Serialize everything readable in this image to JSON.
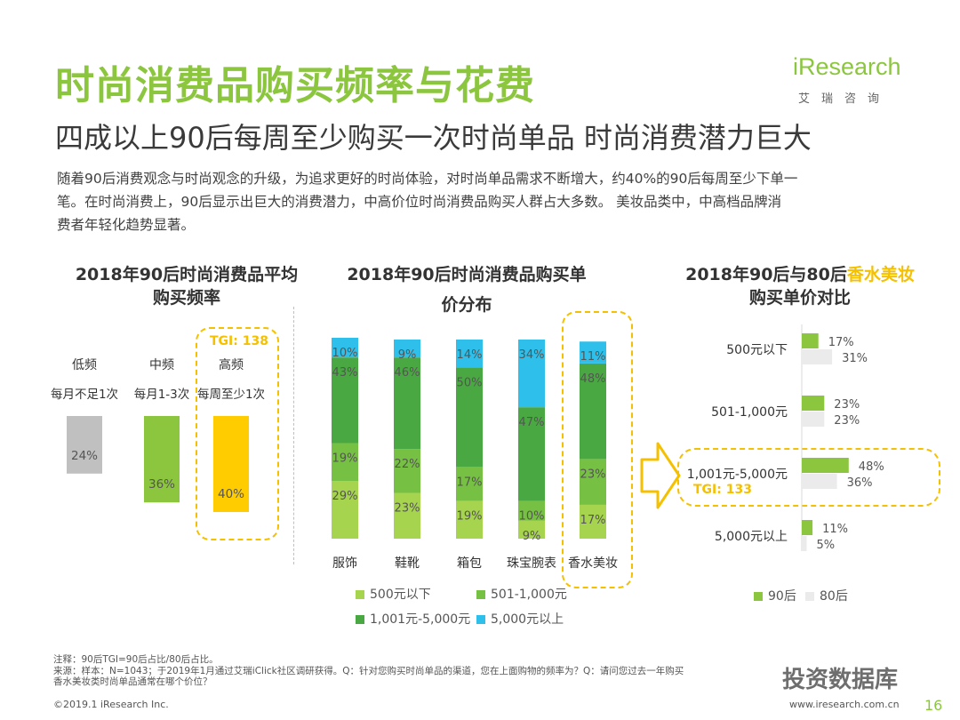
{
  "header": {
    "title": "时尚消费品购买频率与花费",
    "subtitle": "四成以上90后每周至少购买一次时尚单品 时尚消费潜力巨大",
    "intro_line1": "随着90后消费观念与时尚观念的升级，为追求更好的时尚体验，对时尚单品需求不断增大，约40%的90后每周至少下单一",
    "intro_line2": "笔。在时尚消费上，90后显示出巨大的消费潜力，中高价位时尚消费品购买人群占大多数。 美妆品类中，中高档品牌消",
    "intro_line3": "费者年轻化趋势显著。"
  },
  "logo": {
    "word": "iResearch",
    "cn": "艾瑞咨询"
  },
  "chart_data": [
    {
      "type": "bar",
      "title_line1": "2018年90后时尚消费品平均",
      "title_line2": "购买频率",
      "categories": [
        "低频",
        "中频",
        "高频"
      ],
      "sublabels": [
        "每月不足1次",
        "每月1-3次",
        "每周至少1次"
      ],
      "values": [
        24,
        36,
        40
      ],
      "value_labels": [
        "24%",
        "36%",
        "40%"
      ],
      "colors": [
        "#c0c0c0",
        "#8cc63f",
        "#ffcc00"
      ],
      "annotation": "TGI: 138"
    },
    {
      "type": "bar",
      "title_line1": "2018年90后时尚消费品购买单",
      "title_line2": "价分布",
      "categories": [
        "服饰",
        "鞋靴",
        "箱包",
        "珠宝腕表",
        "香水美妆"
      ],
      "series": [
        {
          "name": "500元以下",
          "color": "#a6d44e",
          "values": [
            29,
            23,
            19,
            9,
            17
          ]
        },
        {
          "name": "501-1,000元",
          "color": "#76c043",
          "values": [
            19,
            22,
            17,
            10,
            23
          ]
        },
        {
          "name": "1,001元-5,000元",
          "color": "#4aa842",
          "values": [
            43,
            46,
            50,
            47,
            48
          ]
        },
        {
          "name": "5,000元以上",
          "color": "#2ec0ea",
          "values": [
            10,
            9,
            14,
            34,
            11
          ]
        }
      ],
      "ylim": [
        0,
        100
      ]
    },
    {
      "type": "bar",
      "title_line1": "2018年90后与80后",
      "title_highlight": "香水美妆",
      "title_line2": "购买单价对比",
      "categories": [
        "500元以下",
        "501-1,000元",
        "1,001元-5,000元",
        "5,000元以上"
      ],
      "series": [
        {
          "name": "90后",
          "color": "#8cc63f",
          "values": [
            17,
            23,
            48,
            11
          ]
        },
        {
          "name": "80后",
          "color": "#ebebeb",
          "values": [
            31,
            23,
            36,
            5
          ]
        }
      ],
      "annotation": "TGI: 133"
    }
  ],
  "footer": {
    "notes_line1": "注释：90后TGI=90后占比/80后占比。",
    "notes_line2": "来源：样本：N=1043；于2019年1月通过艾瑞iClick社区调研获得。Q：针对您购买时尚单品的渠道，您在上面购物的频率为？Q：请问您过去一年购买",
    "notes_line3": "香水美妆类时尚单品通常在哪个价位？",
    "copyright": "©2019.1 iResearch Inc.",
    "website": "www.iresearch.com.cn",
    "page": "16",
    "watermark": "投资数据库"
  }
}
